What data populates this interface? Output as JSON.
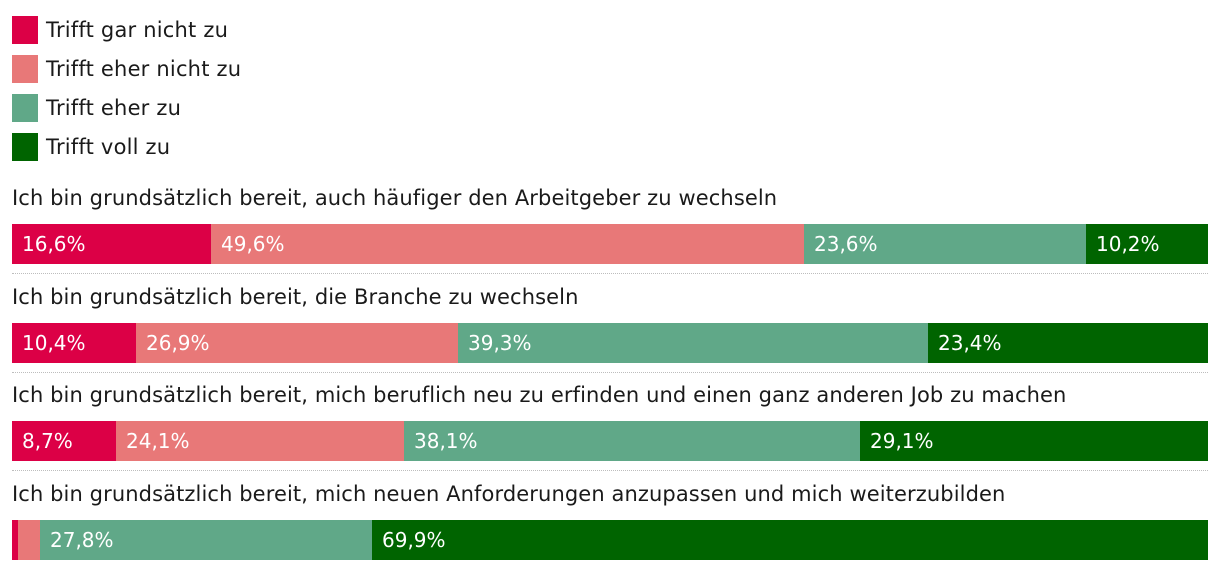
{
  "chart_data": {
    "type": "bar",
    "orientation": "horizontal",
    "stacked": true,
    "legend_position": "top-left",
    "series": [
      {
        "name": "Trifft gar nicht zu",
        "color": "#dc0046"
      },
      {
        "name": "Trifft eher nicht zu",
        "color": "#e87878"
      },
      {
        "name": "Trifft eher zu",
        "color": "#60a888"
      },
      {
        "name": "Trifft voll zu",
        "color": "#006400"
      }
    ],
    "categories": [
      "Ich bin grundsätzlich bereit, auch häufiger den Arbeitgeber zu wechseln",
      "Ich bin grundsätzlich bereit, die Branche zu wechseln",
      "Ich bin grundsätzlich bereit, mich beruflich neu zu erfinden und einen ganz anderen Job zu machen",
      "Ich bin grundsätzlich bereit, mich neuen Anforderungen anzupassen und mich weiterzubilden"
    ],
    "values": [
      [
        16.6,
        49.6,
        23.6,
        10.2
      ],
      [
        10.4,
        26.9,
        39.3,
        23.4
      ],
      [
        8.7,
        24.1,
        38.1,
        29.1
      ],
      [
        0.5,
        1.8,
        27.8,
        69.9
      ]
    ],
    "value_labels": [
      [
        "16,6%",
        "49,6%",
        "23,6%",
        "10,2%"
      ],
      [
        "10,4%",
        "26,9%",
        "39,3%",
        "23,4%"
      ],
      [
        "8,7%",
        "24,1%",
        "38,1%",
        "29,1%"
      ],
      [
        "",
        "",
        "27,8%",
        "69,9%"
      ]
    ],
    "unit": "%",
    "xlim": [
      0,
      100
    ],
    "grid": false
  }
}
